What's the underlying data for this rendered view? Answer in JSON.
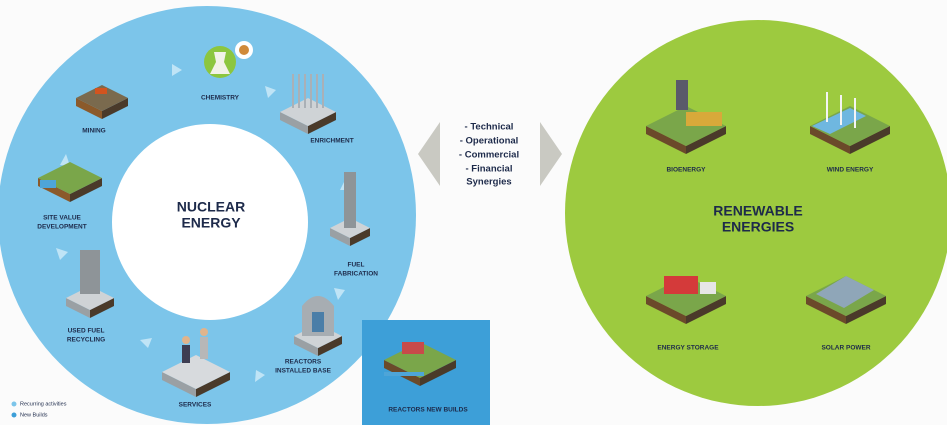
{
  "nuclear": {
    "title": [
      "NUCLEAR",
      "ENERGY"
    ],
    "activities": [
      {
        "label": [
          "MINING"
        ]
      },
      {
        "label": [
          "CHEMISTRY"
        ]
      },
      {
        "label": [
          "ENRICHMENT"
        ]
      },
      {
        "label": [
          "FUEL",
          "FABRICATION"
        ]
      },
      {
        "label": [
          "REACTORS",
          "INSTALLED BASE"
        ]
      },
      {
        "label": [
          "SERVICES"
        ]
      },
      {
        "label": [
          "USED FUEL",
          "RECYCLING"
        ]
      },
      {
        "label": [
          "SITE VALUE",
          "DEVELOPMENT"
        ]
      }
    ],
    "new_builds": {
      "label": [
        "REACTORS NEW BUILDS"
      ]
    },
    "legend": [
      "Recurring activities",
      "New Builds"
    ]
  },
  "synergies": [
    "- Technical",
    "- Operational",
    "- Commercial",
    "- Financial",
    "Synergies"
  ],
  "renewable": {
    "title": [
      "RENEWABLE",
      "ENERGIES"
    ],
    "items": [
      {
        "label": [
          "BIOENERGY"
        ]
      },
      {
        "label": [
          "WIND ENERGY"
        ]
      },
      {
        "label": [
          "ENERGY STORAGE"
        ]
      },
      {
        "label": [
          "SOLAR POWER"
        ]
      }
    ]
  }
}
